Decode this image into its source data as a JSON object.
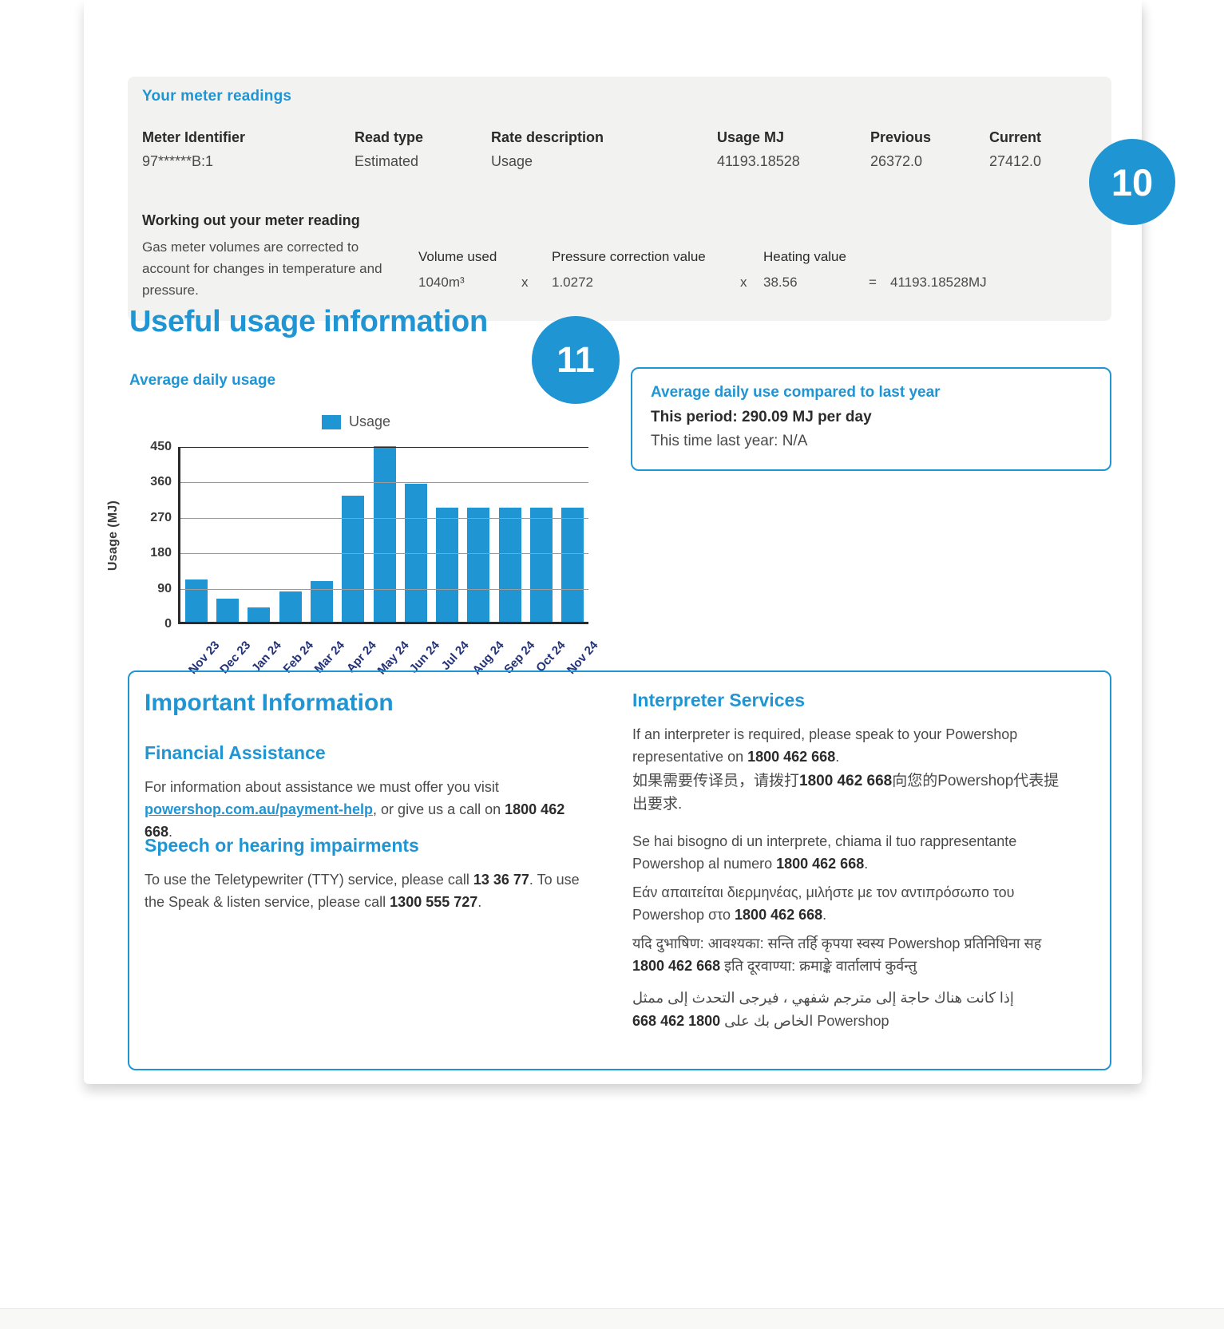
{
  "colors": {
    "accent": "#2095d3",
    "navy": "#233279",
    "panel_bg": "#f2f3f1"
  },
  "badges": {
    "ten": "10",
    "eleven": "11"
  },
  "meter_panel": {
    "title": "Your meter readings",
    "columns": [
      "Meter Identifier",
      "Read type",
      "Rate description",
      "Usage MJ",
      "Previous",
      "Current"
    ],
    "values": [
      "97******B:1",
      "Estimated",
      "Usage",
      "41193.18528",
      "26372.0",
      "27412.0"
    ],
    "working": {
      "title": "Working out your meter reading",
      "description": "Gas meter volumes are corrected to account for changes in temperature and pressure.",
      "volume_label": "Volume used",
      "volume_value": "1040m³",
      "multiply_1": "x",
      "pressure_label": "Pressure correction value",
      "pressure_value": "1.0272",
      "multiply_2": "x",
      "heating_label": "Heating value",
      "heating_value": "38.56",
      "equals": "=",
      "result": "41193.18528MJ"
    }
  },
  "usage_section": {
    "heading": "Useful usage information",
    "chart_title": "Average daily usage"
  },
  "chart_data": {
    "type": "bar",
    "title": "Average daily usage",
    "categories": [
      "Nov 23",
      "Dec 23",
      "Jan 24",
      "Feb 24",
      "Mar 24",
      "Apr 24",
      "May 24",
      "Jun 24",
      "Jul 24",
      "Aug 24",
      "Sep 24",
      "Oct 24",
      "Nov 24"
    ],
    "series": [
      {
        "name": "Usage",
        "values": [
          107,
          59,
          36,
          77,
          104,
          320,
          445,
          350,
          290,
          290,
          290,
          290,
          290
        ]
      }
    ],
    "ylabel": "Usage (MJ)",
    "xlabel": "",
    "yticks": [
      0,
      90,
      180,
      270,
      360,
      450
    ],
    "ylim": [
      0,
      450
    ],
    "grid": true,
    "legend_position": "top",
    "bar_color": "#2095d3"
  },
  "compare_box": {
    "title": "Average daily use compared to last year",
    "this_period": "This period: 290.09 MJ per day",
    "last_year": "This time last year: N/A"
  },
  "info_box": {
    "title": "Important Information",
    "financial": {
      "title": "Financial Assistance",
      "text_before": "For information about assistance we must offer you visit ",
      "link": "powershop.com.au/payment-help",
      "text_mid": ", or give us a call on ",
      "phone": "1800 462 668",
      "text_after": "."
    },
    "speech": {
      "title": "Speech or hearing impairments",
      "text_1": "To use the Teletypewriter (TTY) service, please call ",
      "phone_1": "13 36 77",
      "text_2": ". To use the Speak & listen service, please call ",
      "phone_2": "1300 555 727",
      "text_3": "."
    },
    "interpreter": {
      "title": "Interpreter Services",
      "en_before": "If an interpreter is required, please speak to your Powershop representative on ",
      "en_phone": "1800 462 668",
      "en_after": ".",
      "zh_before": "如果需要传译员，请拨打",
      "zh_phone": "1800 462 668",
      "zh_after": "向您的Powershop代表提出要求.",
      "it_before": "Se hai bisogno di un interprete, chiama il tuo rappresentante Powershop al numero ",
      "it_phone": "1800 462 668",
      "it_after": ".",
      "el_before": "Εάν απαιτείται διερμηνέας, μιλήστε με τον αντιπρόσωπο του Powershop στο ",
      "el_phone": "1800 462 668",
      "el_after": ".",
      "hi_before": "यदि दुभाषिण: आवश्यका: सन्ति तर्हि कृपया स्वस्य Powershop प्रतिनिधिना सह ",
      "hi_phone": "1800 462 668",
      "hi_after": " इति दूरवाण्या: क्रमाङ्के वार्तालापं कुर्वन्तु",
      "ar_before": "إذا كانت هناك حاجة إلى مترجم شفهي ، فيرجى التحدث إلى ممثل Powershop الخاص بك على ",
      "ar_phone": "1800 462 668",
      "ar_after": ""
    }
  }
}
